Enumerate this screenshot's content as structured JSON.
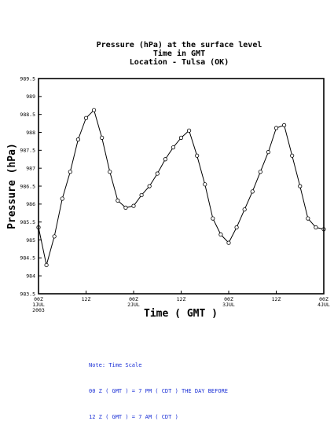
{
  "chart_data": {
    "type": "line",
    "title_lines": [
      "Pressure (hPa) at the surface level",
      "Time in GMT",
      "Location - Tulsa (OK)"
    ],
    "xlabel": "Time ( GMT )",
    "ylabel": "Pressure (hPa)",
    "ylim": [
      983.5,
      989.5
    ],
    "yticks": [
      "983.5",
      "984",
      "984.5",
      "985",
      "985.5",
      "986",
      "986.5",
      "987",
      "987.5",
      "988",
      "988.5",
      "989",
      "989.5"
    ],
    "xlim": [
      0,
      72
    ],
    "xticks": [
      {
        "x": 0,
        "lines": [
          "00Z",
          "1JUL",
          "2003"
        ]
      },
      {
        "x": 12,
        "lines": [
          "12Z"
        ]
      },
      {
        "x": 24,
        "lines": [
          "00Z",
          "2JUL"
        ]
      },
      {
        "x": 36,
        "lines": [
          "12Z"
        ]
      },
      {
        "x": 48,
        "lines": [
          "00Z",
          "3JUL"
        ]
      },
      {
        "x": 60,
        "lines": [
          "12Z"
        ]
      },
      {
        "x": 72,
        "lines": [
          "00Z",
          "4JUL"
        ]
      }
    ],
    "x_units": "hours from 00Z 1JUL 2003",
    "series": [
      {
        "x": [
          0,
          2,
          4,
          6,
          8,
          10,
          12,
          14,
          16,
          18,
          20,
          22,
          24,
          26,
          28,
          30,
          32,
          34,
          36,
          38,
          40,
          42,
          44,
          46,
          48,
          50,
          52,
          54,
          56,
          58,
          60,
          62,
          64,
          66,
          68,
          70,
          72
        ],
        "values": [
          985.35,
          984.3,
          985.1,
          986.15,
          986.9,
          987.8,
          988.4,
          988.62,
          987.85,
          986.9,
          986.1,
          985.9,
          985.95,
          986.25,
          986.5,
          986.85,
          987.25,
          987.58,
          987.85,
          988.05,
          987.35,
          986.55,
          985.6,
          985.15,
          984.92,
          985.35,
          985.85,
          986.35,
          986.9,
          987.45,
          988.12,
          988.2,
          987.35,
          986.5,
          985.6,
          985.35,
          985.3
        ]
      }
    ],
    "marker": "open-circle",
    "line_color": "#000000"
  },
  "note": {
    "lines": [
      "Note: Time Scale",
      "00 Z ( GMT ) = 7 PM ( CDT ) THE DAY BEFORE",
      "12 Z ( GMT ) = 7 AM ( CDT )"
    ],
    "color": "#1a2fd6"
  }
}
